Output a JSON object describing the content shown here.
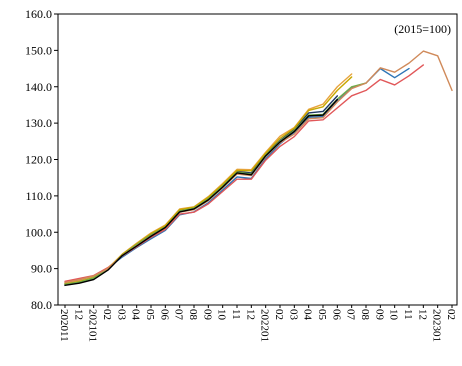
{
  "chart_data": {
    "type": "line",
    "title": "",
    "xlabel": "",
    "ylabel": "",
    "annotation": "(2015=100)",
    "ylim": [
      80,
      160
    ],
    "yticks": [
      80.0,
      90.0,
      100.0,
      110.0,
      120.0,
      130.0,
      140.0,
      150.0,
      160.0
    ],
    "yticks_text": [
      "80.0",
      "90.0",
      "100.0",
      "110.0",
      "120.0",
      "130.0",
      "140.0",
      "150.0",
      "160.0"
    ],
    "grid": false,
    "legend": "none",
    "categories": [
      "202011",
      "12",
      "202101",
      "02",
      "03",
      "04",
      "05",
      "06",
      "07",
      "08",
      "09",
      "10",
      "11",
      "12",
      "202201",
      "02",
      "03",
      "04",
      "05",
      "06",
      "07",
      "08",
      "09",
      "10",
      "11",
      "12",
      "202301",
      "02"
    ],
    "series": [
      {
        "color": "#1f3864",
        "values": [
          85.6,
          86.2,
          87.2,
          89.8,
          93.8,
          96.5,
          99.2,
          101.6,
          106.0,
          106.8,
          109.3,
          112.8,
          116.7,
          116.3,
          121.5,
          125.2,
          128.3,
          132.8,
          133.2,
          137.5,
          null,
          null,
          null,
          null,
          null,
          null,
          null,
          null
        ]
      },
      {
        "color": "#2e75b6",
        "values": [
          86.0,
          86.8,
          87.8,
          90.2,
          93.2,
          95.8,
          98.2,
          100.5,
          104.8,
          105.6,
          108.1,
          111.6,
          115.2,
          114.8,
          120.2,
          124.3,
          127.5,
          131.6,
          131.8,
          136.0,
          139.8,
          141.0,
          145.0,
          142.5,
          145.0,
          null,
          null,
          null
        ]
      },
      {
        "color": "#e15759",
        "values": [
          86.5,
          87.3,
          88.1,
          90.3,
          93.5,
          96.0,
          98.6,
          100.8,
          105.0,
          105.5,
          107.8,
          111.2,
          114.6,
          114.6,
          119.8,
          123.6,
          126.3,
          130.6,
          130.9,
          134.2,
          137.5,
          139.0,
          142.0,
          140.5,
          143.0,
          146.0,
          null,
          null
        ]
      },
      {
        "color": "#e8a33d",
        "values": [
          85.9,
          86.6,
          87.6,
          90.1,
          94.0,
          97.0,
          99.8,
          102.0,
          106.4,
          107.0,
          109.8,
          113.4,
          117.3,
          117.2,
          122.0,
          126.4,
          128.8,
          133.8,
          135.2,
          140.0,
          143.5,
          null,
          null,
          null,
          null,
          null,
          null,
          null
        ]
      },
      {
        "color": "#c8a800",
        "values": [
          85.8,
          86.4,
          87.5,
          89.9,
          93.9,
          96.8,
          99.6,
          101.8,
          106.2,
          106.9,
          109.6,
          113.1,
          117.0,
          116.9,
          121.7,
          125.8,
          128.6,
          133.5,
          134.5,
          139.0,
          142.7,
          null,
          null,
          null,
          null,
          null,
          null,
          null
        ]
      },
      {
        "color": "#70ad47",
        "values": [
          85.7,
          86.3,
          87.4,
          89.9,
          93.7,
          96.6,
          99.3,
          101.4,
          105.8,
          106.6,
          109.2,
          112.7,
          116.5,
          116.0,
          121.2,
          125.0,
          128.0,
          132.2,
          132.4,
          136.6,
          140.0,
          141.0,
          null,
          null,
          null,
          null,
          null,
          null
        ]
      },
      {
        "color": "#d08a5a",
        "values": [
          86.2,
          87.0,
          88.0,
          90.0,
          93.6,
          96.3,
          99.0,
          101.2,
          105.5,
          106.2,
          108.7,
          112.2,
          116.0,
          115.6,
          120.8,
          124.6,
          127.0,
          131.2,
          131.5,
          135.8,
          139.5,
          141.0,
          145.2,
          144.0,
          146.5,
          149.8,
          148.5,
          139.0
        ]
      },
      {
        "color": "#000000",
        "values": [
          85.4,
          86.0,
          87.0,
          89.6,
          93.6,
          96.2,
          98.9,
          101.3,
          105.6,
          106.4,
          108.9,
          112.4,
          116.3,
          115.8,
          121.0,
          124.8,
          127.7,
          132.0,
          132.2,
          136.5,
          null,
          null,
          null,
          null,
          null,
          null,
          null,
          null
        ]
      }
    ]
  }
}
